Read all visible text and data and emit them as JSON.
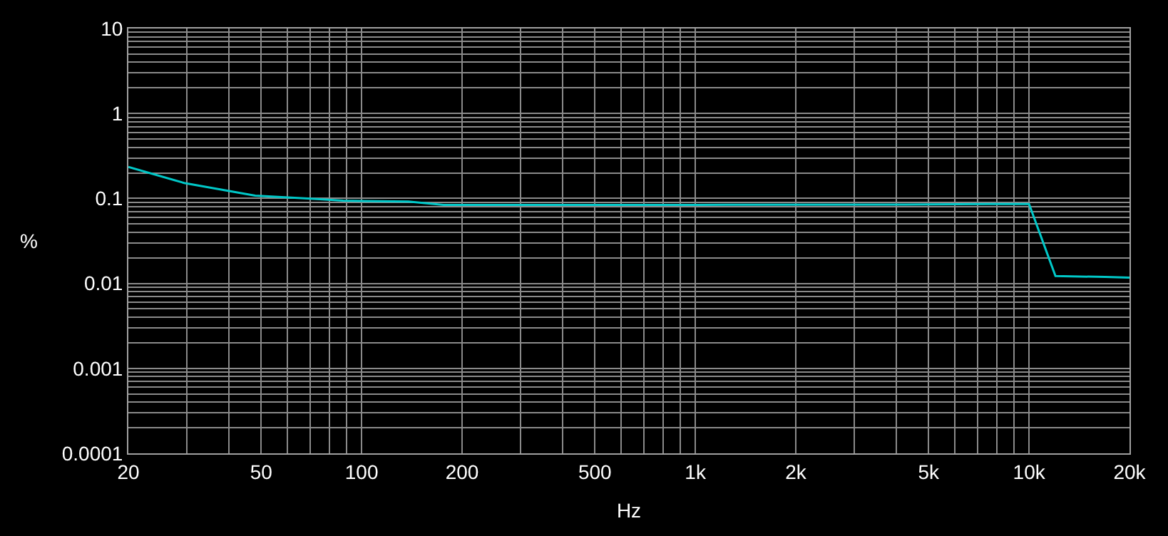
{
  "chart_data": {
    "type": "line",
    "xlabel": "Hz",
    "ylabel": "%",
    "log": "xy",
    "grid": true,
    "legend": false,
    "marker": "none",
    "line_style": "solid",
    "x": [
      20,
      29.4,
      48,
      69,
      88,
      138,
      176,
      1000,
      5000,
      7500,
      10000,
      12000,
      16900,
      20000
    ],
    "series": [
      {
        "color": "#00c8c8",
        "values": [
          0.235,
          0.152,
          0.108,
          0.1,
          0.094,
          0.092,
          0.084,
          0.084,
          0.085,
          0.086,
          0.086,
          0.0122,
          0.0119,
          0.0117
        ]
      }
    ],
    "xlim": [
      20,
      20000
    ],
    "xticks": [
      20,
      {
        "value": 30,
        "label": null
      },
      {
        "value": 40,
        "label": null
      },
      50,
      {
        "value": 60,
        "label": null
      },
      {
        "value": 70,
        "label": null
      },
      {
        "value": 80,
        "label": null
      },
      {
        "value": 90,
        "label": null
      },
      100,
      200,
      {
        "value": 300,
        "label": null
      },
      {
        "value": 400,
        "label": null
      },
      500,
      {
        "value": 600,
        "label": null
      },
      {
        "value": 700,
        "label": null
      },
      {
        "value": 800,
        "label": null
      },
      {
        "value": 900,
        "label": null
      },
      {
        "value": 1000,
        "label": "1k"
      },
      {
        "value": 2000,
        "label": "2k"
      },
      {
        "value": 3000,
        "label": null
      },
      {
        "value": 4000,
        "label": null
      },
      {
        "value": 5000,
        "label": "5k"
      },
      {
        "value": 6000,
        "label": null
      },
      {
        "value": 7000,
        "label": null
      },
      {
        "value": 8000,
        "label": null
      },
      {
        "value": 9000,
        "label": null
      },
      {
        "value": 10000,
        "label": "10k"
      },
      {
        "value": 20000,
        "label": "20k"
      }
    ],
    "ylim": [
      0.0001,
      10
    ],
    "yticks": [
      0.0001,
      {
        "value": 0.0002,
        "label": null
      },
      {
        "value": 0.0003,
        "label": null
      },
      {
        "value": 0.0004,
        "label": null
      },
      {
        "value": 0.0005,
        "label": null
      },
      {
        "value": 0.0006,
        "label": null
      },
      {
        "value": 0.0007,
        "label": null
      },
      {
        "value": 0.0008,
        "label": null
      },
      {
        "value": 0.0009,
        "label": null
      },
      0.001,
      {
        "value": 0.002,
        "label": null
      },
      {
        "value": 0.003,
        "label": null
      },
      {
        "value": 0.004,
        "label": null
      },
      {
        "value": 0.005,
        "label": null
      },
      {
        "value": 0.006,
        "label": null
      },
      {
        "value": 0.007,
        "label": null
      },
      {
        "value": 0.008,
        "label": null
      },
      {
        "value": 0.009,
        "label": null
      },
      0.01,
      {
        "value": 0.02,
        "label": null
      },
      {
        "value": 0.03,
        "label": null
      },
      {
        "value": 0.04,
        "label": null
      },
      {
        "value": 0.05,
        "label": null
      },
      {
        "value": 0.06,
        "label": null
      },
      {
        "value": 0.07,
        "label": null
      },
      {
        "value": 0.08,
        "label": null
      },
      {
        "value": 0.09,
        "label": null
      },
      0.1,
      {
        "value": 0.2,
        "label": null
      },
      {
        "value": 0.3,
        "label": null
      },
      {
        "value": 0.4,
        "label": null
      },
      {
        "value": 0.5,
        "label": null
      },
      {
        "value": 0.6,
        "label": null
      },
      {
        "value": 0.7,
        "label": null
      },
      {
        "value": 0.8,
        "label": null
      },
      {
        "value": 0.9,
        "label": null
      },
      1,
      {
        "value": 2,
        "label": null
      },
      {
        "value": 3,
        "label": null
      },
      {
        "value": 4,
        "label": null
      },
      {
        "value": 5,
        "label": null
      },
      {
        "value": 6,
        "label": null
      },
      {
        "value": 7,
        "label": null
      },
      {
        "value": 8,
        "label": null
      },
      {
        "value": 9,
        "label": null
      },
      10
    ]
  }
}
